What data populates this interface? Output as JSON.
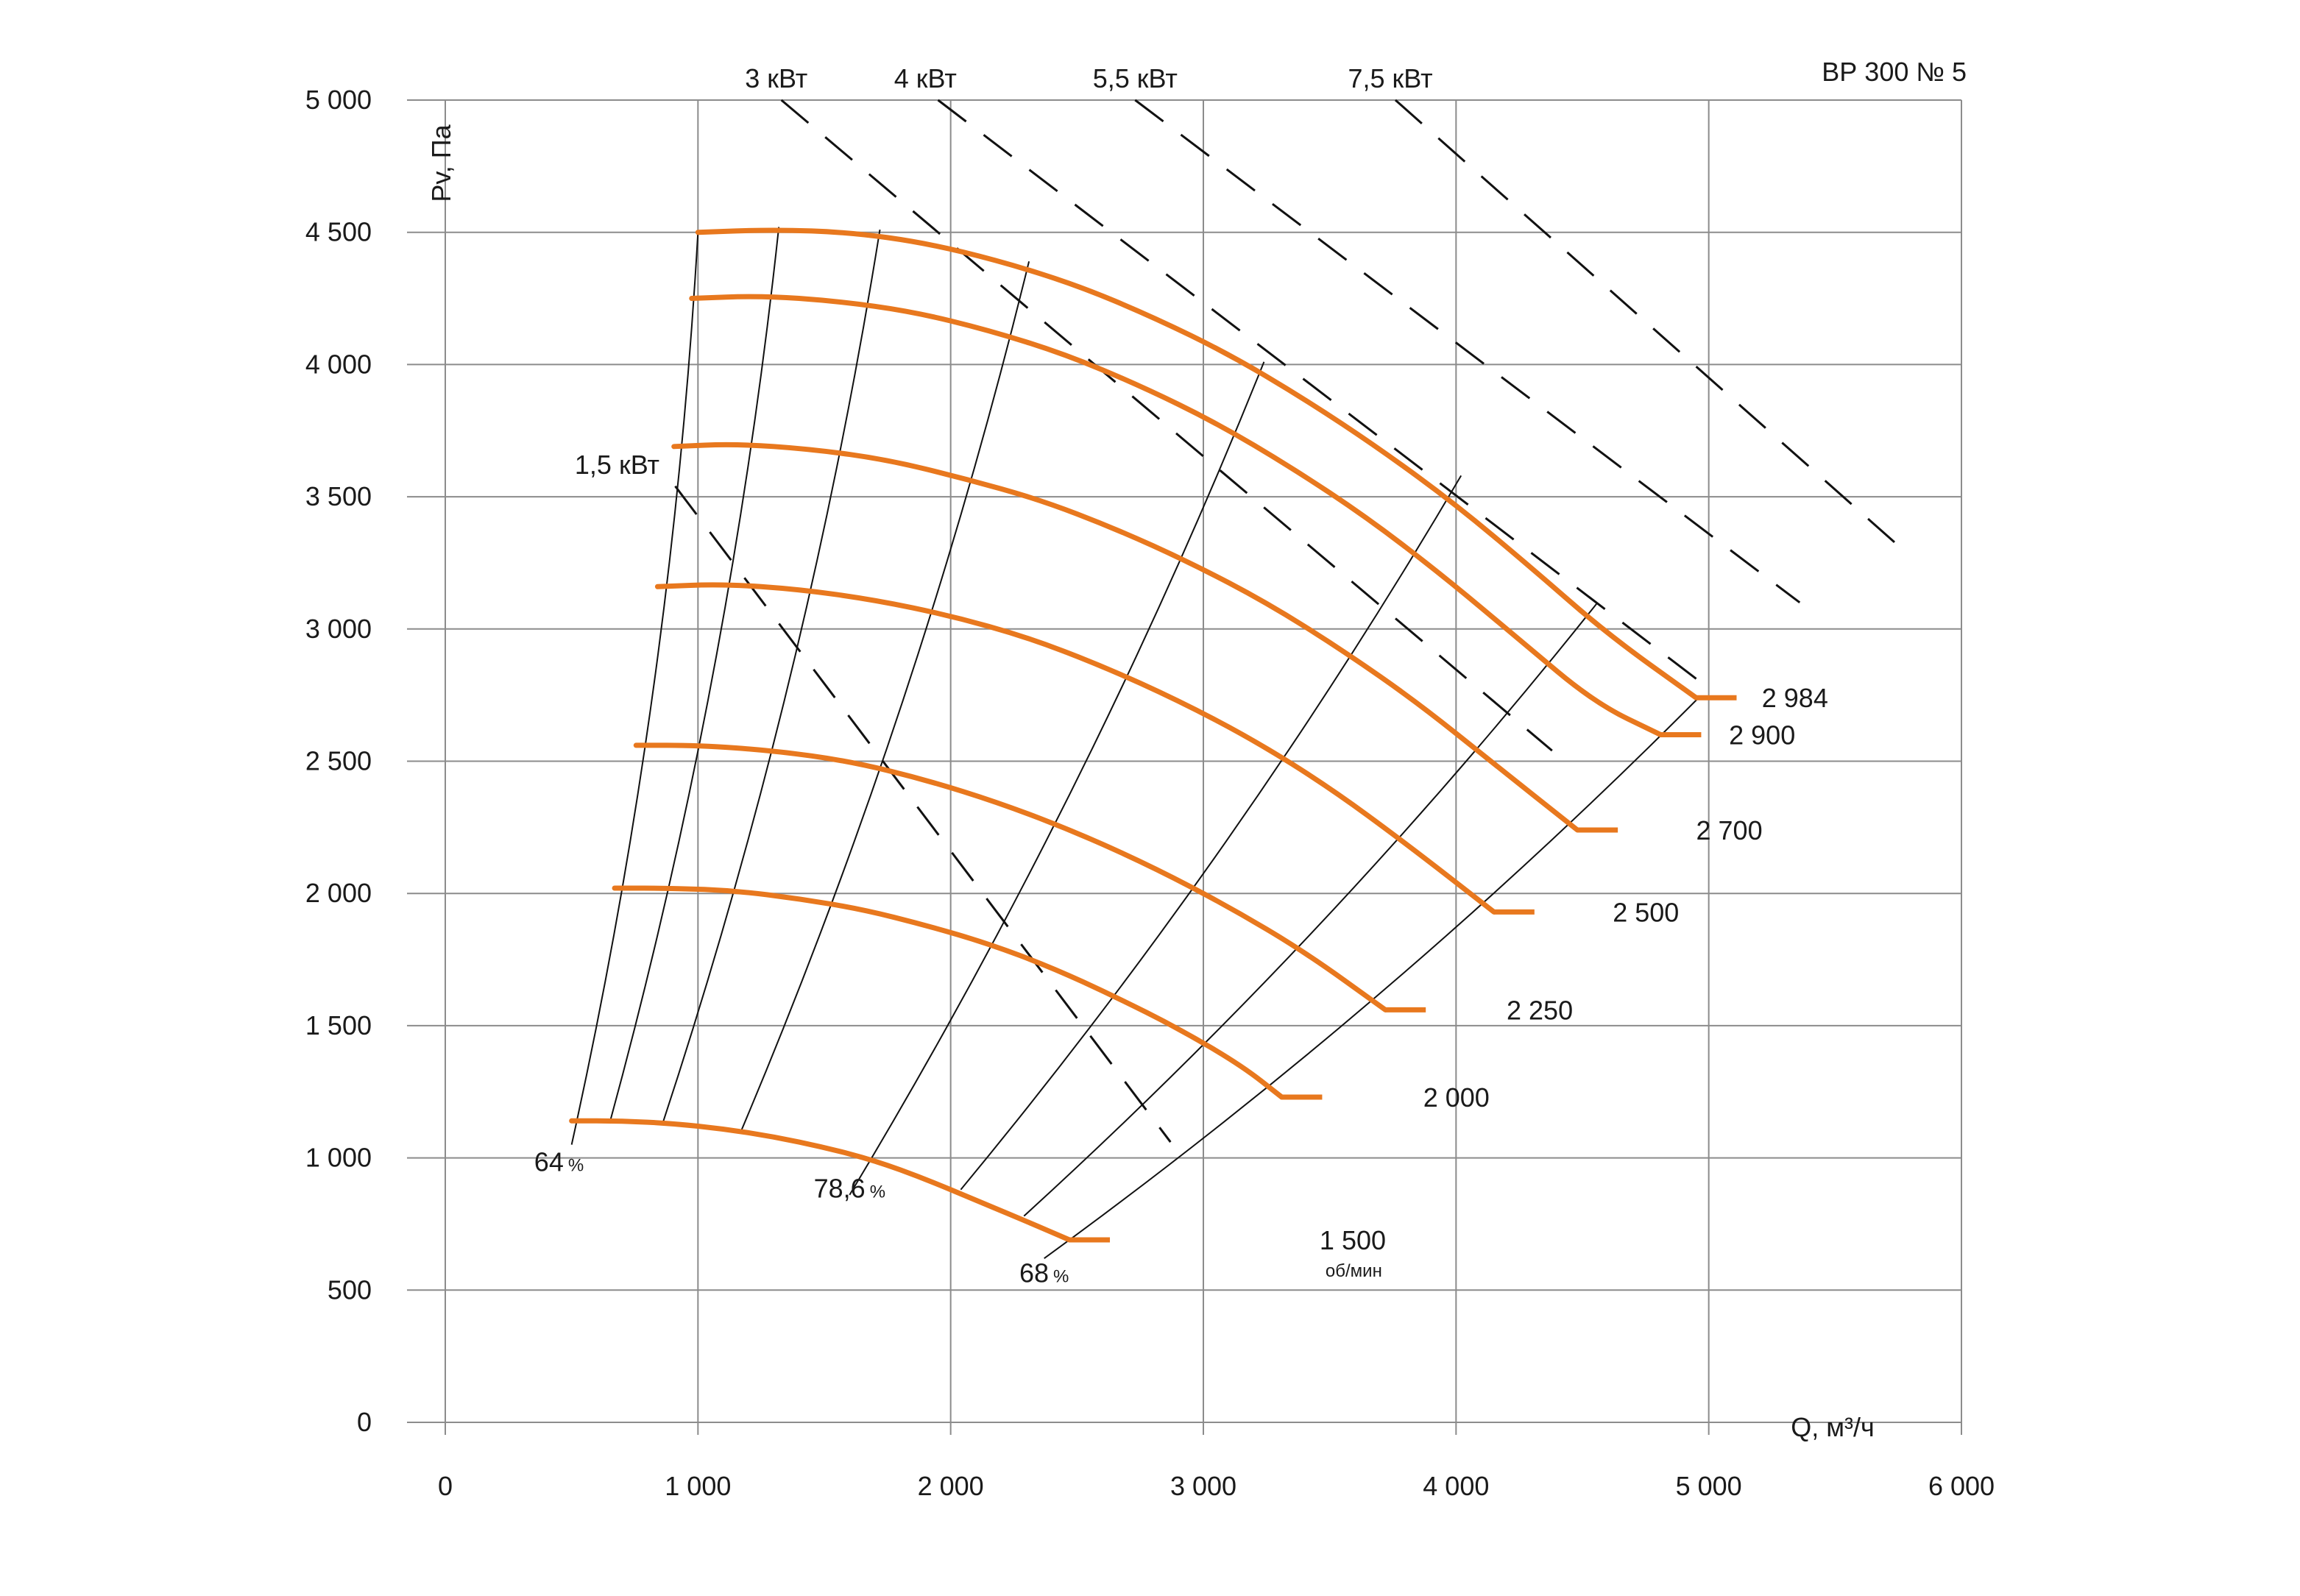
{
  "chart_data": {
    "type": "line",
    "title": "ВР 300 № 5",
    "xlabel": "Q, м³/ч",
    "ylabel": "Pv, Па",
    "xlim": [
      0,
      6000
    ],
    "ylim": [
      0,
      5000
    ],
    "grid": true,
    "x_ticks": [
      {
        "value": 0,
        "label": "0"
      },
      {
        "value": 1000,
        "label": "1 000"
      },
      {
        "value": 2000,
        "label": "2 000"
      },
      {
        "value": 3000,
        "label": "3 000"
      },
      {
        "value": 4000,
        "label": "4 000"
      },
      {
        "value": 5000,
        "label": "5 000"
      },
      {
        "value": 6000,
        "label": "6 000"
      }
    ],
    "y_ticks": [
      {
        "value": 0,
        "label": "0"
      },
      {
        "value": 500,
        "label": "500"
      },
      {
        "value": 1000,
        "label": "1 000"
      },
      {
        "value": 1500,
        "label": "1 500"
      },
      {
        "value": 2000,
        "label": "2 000"
      },
      {
        "value": 2500,
        "label": "2 500"
      },
      {
        "value": 3000,
        "label": "3 000"
      },
      {
        "value": 3500,
        "label": "3 500"
      },
      {
        "value": 4000,
        "label": "4 000"
      },
      {
        "value": 4500,
        "label": "4 500"
      },
      {
        "value": 5000,
        "label": "5 000"
      }
    ],
    "series": [
      {
        "name": "2 984",
        "color": "#e8781e",
        "x": [
          1000,
          1300,
          1600,
          1900,
          2200,
          2500,
          2800,
          3100,
          3400,
          3700,
          4000,
          4300,
          4600,
          4950
        ],
        "y": [
          4500,
          4510,
          4500,
          4460,
          4390,
          4300,
          4180,
          4040,
          3870,
          3680,
          3470,
          3230,
          2980,
          2740
        ]
      },
      {
        "name": "2 900",
        "color": "#e8781e",
        "x": [
          975,
          1250,
          1550,
          1850,
          2150,
          2450,
          2750,
          3050,
          3350,
          3650,
          3950,
          4250,
          4550,
          4810
        ],
        "y": [
          4250,
          4260,
          4240,
          4200,
          4130,
          4040,
          3920,
          3780,
          3610,
          3420,
          3200,
          2960,
          2720,
          2600
        ]
      },
      {
        "name": "2 700",
        "color": "#e8781e",
        "x": [
          905,
          1150,
          1450,
          1750,
          2050,
          2350,
          2650,
          2950,
          3250,
          3550,
          3850,
          4150,
          4480
        ],
        "y": [
          3690,
          3700,
          3680,
          3640,
          3570,
          3490,
          3380,
          3250,
          3100,
          2920,
          2720,
          2490,
          2240
        ]
      },
      {
        "name": "2 500",
        "color": "#e8781e",
        "x": [
          840,
          1100,
          1400,
          1700,
          2000,
          2300,
          2600,
          2900,
          3200,
          3500,
          3800,
          4150
        ],
        "y": [
          3160,
          3170,
          3150,
          3110,
          3050,
          2970,
          2860,
          2730,
          2580,
          2400,
          2190,
          1930
        ]
      },
      {
        "name": "2 250",
        "color": "#e8781e",
        "x": [
          755,
          1000,
          1300,
          1600,
          1900,
          2200,
          2500,
          2800,
          3100,
          3400,
          3720
        ],
        "y": [
          2560,
          2560,
          2540,
          2500,
          2430,
          2340,
          2230,
          2100,
          1950,
          1780,
          1560
        ]
      },
      {
        "name": "2 000",
        "color": "#e8781e",
        "x": [
          670,
          900,
          1150,
          1400,
          1650,
          1900,
          2150,
          2400,
          2650,
          2900,
          3150,
          3310
        ],
        "y": [
          2020,
          2020,
          2010,
          1980,
          1940,
          1880,
          1810,
          1720,
          1610,
          1490,
          1350,
          1230
        ]
      },
      {
        "name": "1 500",
        "color": "#e8781e",
        "x": [
          500,
          700,
          900,
          1100,
          1300,
          1500,
          1700,
          1900,
          2100,
          2300,
          2470
        ],
        "y": [
          1140,
          1140,
          1130,
          1110,
          1080,
          1040,
          990,
          920,
          840,
          760,
          690
        ]
      }
    ],
    "rpm_unit": "об/мин",
    "rpm_label_x": [
      5210,
      5080,
      4950,
      4620,
      4200,
      3870,
      3460
    ],
    "efficiency_lines": [
      {
        "label": "64",
        "unit": "%",
        "label_x": 450,
        "label_y": 950,
        "points": [
          [
            500,
            1050
          ],
          [
            1000,
            4500
          ]
        ]
      },
      {
        "label": "",
        "points": [
          [
            650,
            1130
          ],
          [
            1320,
            4520
          ]
        ]
      },
      {
        "label": "",
        "points": [
          [
            860,
            1130
          ],
          [
            1720,
            4510
          ]
        ]
      },
      {
        "label": "",
        "points": [
          [
            1170,
            1100
          ],
          [
            2310,
            4390
          ]
        ]
      },
      {
        "label": "78,6",
        "unit": "%",
        "label_x": 1600,
        "label_y": 850,
        "points": [
          [
            1600,
            860
          ],
          [
            3240,
            4010
          ]
        ]
      },
      {
        "label": "",
        "points": [
          [
            2040,
            880
          ],
          [
            4020,
            3580
          ]
        ]
      },
      {
        "label": "",
        "points": [
          [
            2290,
            780
          ],
          [
            4560,
            3100
          ]
        ]
      },
      {
        "label": "68",
        "unit": "%",
        "label_x": 2370,
        "label_y": 530,
        "points": [
          [
            2370,
            620
          ],
          [
            4960,
            2740
          ]
        ]
      }
    ],
    "power_lines": [
      {
        "label": "1,5 кВт",
        "label_x": 680,
        "label_y": 3620,
        "points": [
          [
            910,
            3540
          ],
          [
            2870,
            1060
          ]
        ]
      },
      {
        "label": "3 кВт",
        "label_x": 1310,
        "label_y": 5080,
        "points": [
          [
            1330,
            5000
          ],
          [
            4380,
            2540
          ]
        ]
      },
      {
        "label": "4 кВт",
        "label_x": 1900,
        "label_y": 5080,
        "points": [
          [
            1950,
            5000
          ],
          [
            4980,
            2790
          ]
        ]
      },
      {
        "label": "5,5 кВт",
        "label_x": 2730,
        "label_y": 5080,
        "points": [
          [
            2730,
            5000
          ],
          [
            5360,
            3100
          ]
        ]
      },
      {
        "label": "7,5 кВт",
        "label_x": 3740,
        "label_y": 5080,
        "points": [
          [
            3760,
            5000
          ],
          [
            5780,
            3290
          ]
        ]
      }
    ],
    "colors": {
      "curve": "#e8781e",
      "grid": "#8c8c8c",
      "text": "#1a1a1a"
    }
  }
}
